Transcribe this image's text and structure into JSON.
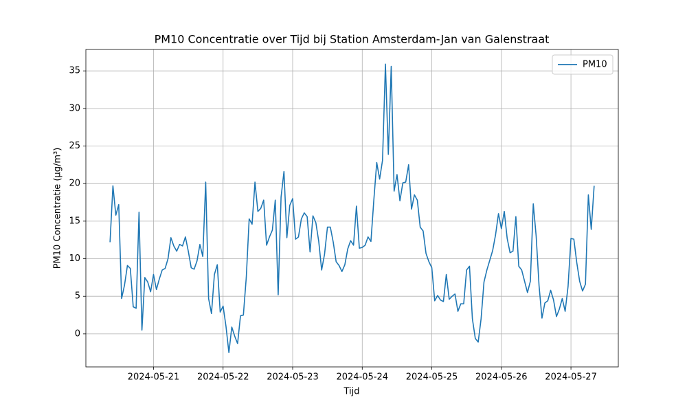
{
  "chart_data": {
    "type": "line",
    "title": "PM10 Concentratie over Tijd bij Station Amsterdam-Jan van Galenstraat",
    "x_label": "Tijd",
    "y_label": "PM10 Concentratie (µg/m³)",
    "x": [
      "2024-05-20 09:00",
      "2024-05-20 10:00",
      "2024-05-20 11:00",
      "2024-05-20 12:00",
      "2024-05-20 13:00",
      "2024-05-20 14:00",
      "2024-05-20 15:00",
      "2024-05-20 16:00",
      "2024-05-20 17:00",
      "2024-05-20 18:00",
      "2024-05-20 19:00",
      "2024-05-20 20:00",
      "2024-05-20 21:00",
      "2024-05-20 22:00",
      "2024-05-20 23:00",
      "2024-05-21 00:00",
      "2024-05-21 01:00",
      "2024-05-21 02:00",
      "2024-05-21 03:00",
      "2024-05-21 04:00",
      "2024-05-21 05:00",
      "2024-05-21 06:00",
      "2024-05-21 07:00",
      "2024-05-21 08:00",
      "2024-05-21 09:00",
      "2024-05-21 10:00",
      "2024-05-21 11:00",
      "2024-05-21 12:00",
      "2024-05-21 13:00",
      "2024-05-21 14:00",
      "2024-05-21 15:00",
      "2024-05-21 16:00",
      "2024-05-21 17:00",
      "2024-05-21 18:00",
      "2024-05-21 19:00",
      "2024-05-21 20:00",
      "2024-05-21 21:00",
      "2024-05-21 22:00",
      "2024-05-21 23:00",
      "2024-05-22 00:00",
      "2024-05-22 01:00",
      "2024-05-22 02:00",
      "2024-05-22 03:00",
      "2024-05-22 04:00",
      "2024-05-22 05:00",
      "2024-05-22 06:00",
      "2024-05-22 07:00",
      "2024-05-22 08:00",
      "2024-05-22 09:00",
      "2024-05-22 10:00",
      "2024-05-22 11:00",
      "2024-05-22 12:00",
      "2024-05-22 13:00",
      "2024-05-22 14:00",
      "2024-05-22 15:00",
      "2024-05-22 16:00",
      "2024-05-22 17:00",
      "2024-05-22 18:00",
      "2024-05-22 19:00",
      "2024-05-22 20:00",
      "2024-05-22 21:00",
      "2024-05-22 22:00",
      "2024-05-22 23:00",
      "2024-05-23 00:00",
      "2024-05-23 01:00",
      "2024-05-23 02:00",
      "2024-05-23 03:00",
      "2024-05-23 04:00",
      "2024-05-23 05:00",
      "2024-05-23 06:00",
      "2024-05-23 07:00",
      "2024-05-23 08:00",
      "2024-05-23 09:00",
      "2024-05-23 10:00",
      "2024-05-23 11:00",
      "2024-05-23 12:00",
      "2024-05-23 13:00",
      "2024-05-23 14:00",
      "2024-05-23 15:00",
      "2024-05-23 16:00",
      "2024-05-23 17:00",
      "2024-05-23 18:00",
      "2024-05-23 19:00",
      "2024-05-23 20:00",
      "2024-05-23 21:00",
      "2024-05-23 22:00",
      "2024-05-23 23:00",
      "2024-05-24 00:00",
      "2024-05-24 01:00",
      "2024-05-24 02:00",
      "2024-05-24 03:00",
      "2024-05-24 04:00",
      "2024-05-24 05:00",
      "2024-05-24 06:00",
      "2024-05-24 07:00",
      "2024-05-24 08:00",
      "2024-05-24 09:00",
      "2024-05-24 10:00",
      "2024-05-24 11:00",
      "2024-05-24 12:00",
      "2024-05-24 13:00",
      "2024-05-24 14:00",
      "2024-05-24 15:00",
      "2024-05-24 16:00",
      "2024-05-24 17:00",
      "2024-05-24 18:00",
      "2024-05-24 19:00",
      "2024-05-24 20:00",
      "2024-05-24 21:00",
      "2024-05-24 22:00",
      "2024-05-24 23:00",
      "2024-05-25 00:00",
      "2024-05-25 01:00",
      "2024-05-25 02:00",
      "2024-05-25 03:00",
      "2024-05-25 04:00",
      "2024-05-25 05:00",
      "2024-05-25 06:00",
      "2024-05-25 07:00",
      "2024-05-25 08:00",
      "2024-05-25 09:00",
      "2024-05-25 10:00",
      "2024-05-25 11:00",
      "2024-05-25 12:00",
      "2024-05-25 13:00",
      "2024-05-25 14:00",
      "2024-05-25 15:00",
      "2024-05-25 16:00",
      "2024-05-25 17:00",
      "2024-05-25 18:00",
      "2024-05-25 19:00",
      "2024-05-25 20:00",
      "2024-05-25 21:00",
      "2024-05-25 22:00",
      "2024-05-25 23:00",
      "2024-05-26 00:00",
      "2024-05-26 01:00",
      "2024-05-26 02:00",
      "2024-05-26 03:00",
      "2024-05-26 04:00",
      "2024-05-26 05:00",
      "2024-05-26 06:00",
      "2024-05-26 07:00",
      "2024-05-26 08:00",
      "2024-05-26 09:00",
      "2024-05-26 10:00",
      "2024-05-26 11:00",
      "2024-05-26 12:00",
      "2024-05-26 13:00",
      "2024-05-26 14:00",
      "2024-05-26 15:00",
      "2024-05-26 16:00",
      "2024-05-26 17:00",
      "2024-05-26 18:00",
      "2024-05-26 19:00",
      "2024-05-26 20:00",
      "2024-05-26 21:00",
      "2024-05-26 22:00",
      "2024-05-26 23:00",
      "2024-05-27 00:00",
      "2024-05-27 01:00",
      "2024-05-27 02:00",
      "2024-05-27 03:00",
      "2024-05-27 04:00",
      "2024-05-27 05:00",
      "2024-05-27 06:00",
      "2024-05-27 07:00",
      "2024-05-27 08:00"
    ],
    "series": [
      {
        "name": "PM10",
        "color": "#1f77b4",
        "values": [
          12.2,
          19.7,
          15.8,
          17.2,
          4.7,
          6.5,
          9.1,
          8.7,
          3.6,
          3.4,
          16.2,
          0.5,
          7.5,
          6.9,
          5.6,
          7.9,
          5.9,
          7.3,
          8.5,
          8.7,
          10.0,
          12.8,
          11.7,
          11.0,
          11.9,
          11.7,
          12.9,
          11.0,
          8.8,
          8.6,
          9.7,
          11.9,
          10.3,
          20.2,
          4.7,
          2.7,
          7.9,
          9.2,
          2.9,
          3.7,
          1.0,
          -2.5,
          0.9,
          -0.3,
          -1.3,
          2.4,
          2.5,
          7.5,
          15.3,
          14.6,
          20.2,
          16.3,
          16.7,
          17.8,
          11.8,
          12.9,
          13.8,
          17.8,
          5.2,
          18.2,
          21.6,
          12.8,
          17.1,
          18.0,
          12.6,
          12.9,
          15.3,
          16.1,
          15.6,
          10.9,
          15.7,
          14.8,
          12.3,
          8.5,
          10.6,
          14.2,
          14.2,
          12.2,
          9.6,
          9.1,
          8.3,
          9.2,
          11.3,
          12.4,
          11.8,
          17.0,
          11.4,
          11.5,
          11.8,
          12.9,
          12.3,
          17.8,
          22.8,
          20.6,
          23.1,
          35.9,
          23.9,
          35.6,
          19.0,
          21.2,
          17.7,
          20.1,
          20.2,
          22.5,
          16.6,
          18.5,
          17.8,
          14.2,
          13.7,
          10.7,
          9.6,
          8.8,
          4.4,
          5.1,
          4.5,
          4.3,
          7.9,
          4.6,
          5.0,
          5.3,
          3.0,
          4.0,
          4.0,
          8.5,
          9.0,
          2.0,
          -0.6,
          -1.1,
          2.0,
          6.9,
          8.5,
          9.8,
          11.1,
          13.2,
          16.0,
          14.0,
          16.3,
          12.7,
          10.8,
          11.0,
          15.6,
          9.0,
          8.5,
          7.0,
          5.5,
          7.0,
          17.3,
          13.0,
          6.4,
          2.1,
          4.1,
          4.4,
          5.8,
          4.5,
          2.3,
          3.3,
          4.7,
          3.0,
          6.3,
          12.7,
          12.6,
          9.5,
          7.0,
          5.7,
          6.6,
          18.5,
          13.9,
          19.7
        ]
      }
    ],
    "xlim": [
      "2024-05-20 00:40",
      "2024-05-27 16:20"
    ],
    "xticks": [
      "2024-05-21",
      "2024-05-22",
      "2024-05-23",
      "2024-05-24",
      "2024-05-25",
      "2024-05-26",
      "2024-05-27"
    ],
    "ylim": [
      -4.4,
      37.85
    ],
    "yticks": [
      0,
      5,
      10,
      15,
      20,
      25,
      30,
      35
    ],
    "grid": true,
    "legend": "upper right"
  }
}
